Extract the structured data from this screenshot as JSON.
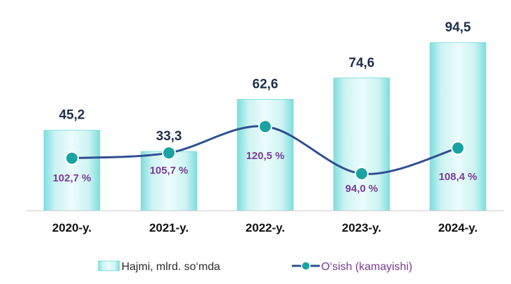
{
  "chart_data": {
    "type": "bar",
    "categories": [
      "2020-y.",
      "2021-y.",
      "2022-y.",
      "2023-y.",
      "2024-y."
    ],
    "series": [
      {
        "name": "Hajmi, mlrd. so‘mda",
        "type": "bar",
        "values": [
          45.2,
          33.3,
          62.6,
          74.6,
          94.5
        ],
        "labels": [
          "45,2",
          "33,3",
          "62,6",
          "74,6",
          "94,5"
        ]
      },
      {
        "name": "O‘sish (kamayishi)",
        "type": "line",
        "values": [
          102.7,
          105.7,
          120.5,
          94.0,
          108.4
        ],
        "labels": [
          "102,7 %",
          "105,7 %",
          "120,5 %",
          "94,0 %",
          "108,4 %"
        ]
      }
    ],
    "legend": "bottom",
    "grid": false,
    "colors": {
      "bar_fill": "#c9f1f1",
      "bar_edge": "#6fd6d6",
      "line": "#2f4f8f",
      "marker": "#1aa3a3",
      "bar_label": "#1f2d4d",
      "pct_label": "#7a3c96",
      "axis": "#c8c8c8"
    }
  }
}
